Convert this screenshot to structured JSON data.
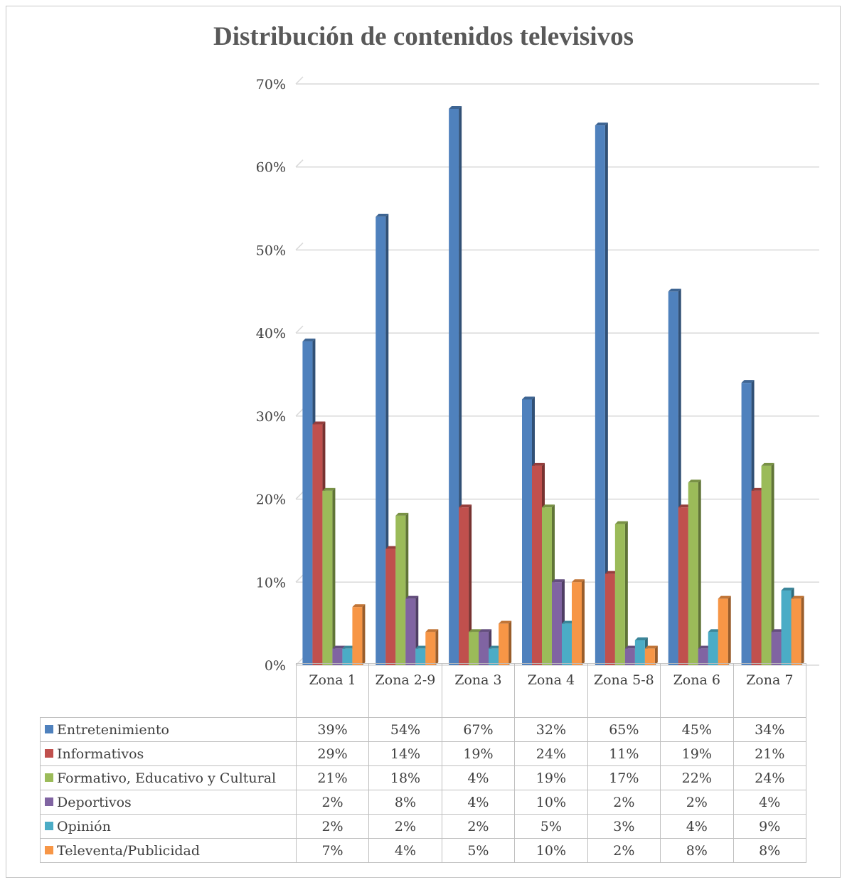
{
  "chart_data": {
    "type": "bar",
    "title": "Distribución de contenidos televisivos",
    "xlabel": "",
    "ylabel": "",
    "ylim": [
      0,
      70
    ],
    "yticks": [
      "0%",
      "10%",
      "20%",
      "30%",
      "40%",
      "50%",
      "60%",
      "70%"
    ],
    "grid": true,
    "legend": "data table below chart",
    "categories": [
      "Zona 1",
      "Zona 2-9",
      "Zona 3",
      "Zona 4",
      "Zona 5-8",
      "Zona 6",
      "Zona 7"
    ],
    "series": [
      {
        "name": "Entretenimiento",
        "color": "#4f81bd",
        "values": [
          39,
          54,
          67,
          32,
          65,
          45,
          34
        ],
        "labels": [
          "39%",
          "54%",
          "67%",
          "32%",
          "65%",
          "45%",
          "34%"
        ]
      },
      {
        "name": "Informativos",
        "color": "#c0504d",
        "values": [
          29,
          14,
          19,
          24,
          11,
          19,
          21
        ],
        "labels": [
          "29%",
          "14%",
          "19%",
          "24%",
          "11%",
          "19%",
          "21%"
        ]
      },
      {
        "name": "Formativo, Educativo y Cultural",
        "color": "#9bbb59",
        "values": [
          21,
          18,
          4,
          19,
          17,
          22,
          24
        ],
        "labels": [
          "21%",
          "18%",
          "4%",
          "19%",
          "17%",
          "22%",
          "24%"
        ]
      },
      {
        "name": "Deportivos",
        "color": "#8064a2",
        "values": [
          2,
          8,
          4,
          10,
          2,
          2,
          4
        ],
        "labels": [
          "2%",
          "8%",
          "4%",
          "10%",
          "2%",
          "2%",
          "4%"
        ]
      },
      {
        "name": "Opinión",
        "color": "#4bacc6",
        "values": [
          2,
          2,
          2,
          5,
          3,
          4,
          9
        ],
        "labels": [
          "2%",
          "2%",
          "2%",
          "5%",
          "3%",
          "4%",
          "9%"
        ]
      },
      {
        "name": "Televenta/Publicidad",
        "color": "#f79646",
        "values": [
          7,
          4,
          5,
          10,
          2,
          8,
          8
        ],
        "labels": [
          "7%",
          "4%",
          "5%",
          "10%",
          "2%",
          "8%",
          "8%"
        ]
      }
    ]
  }
}
